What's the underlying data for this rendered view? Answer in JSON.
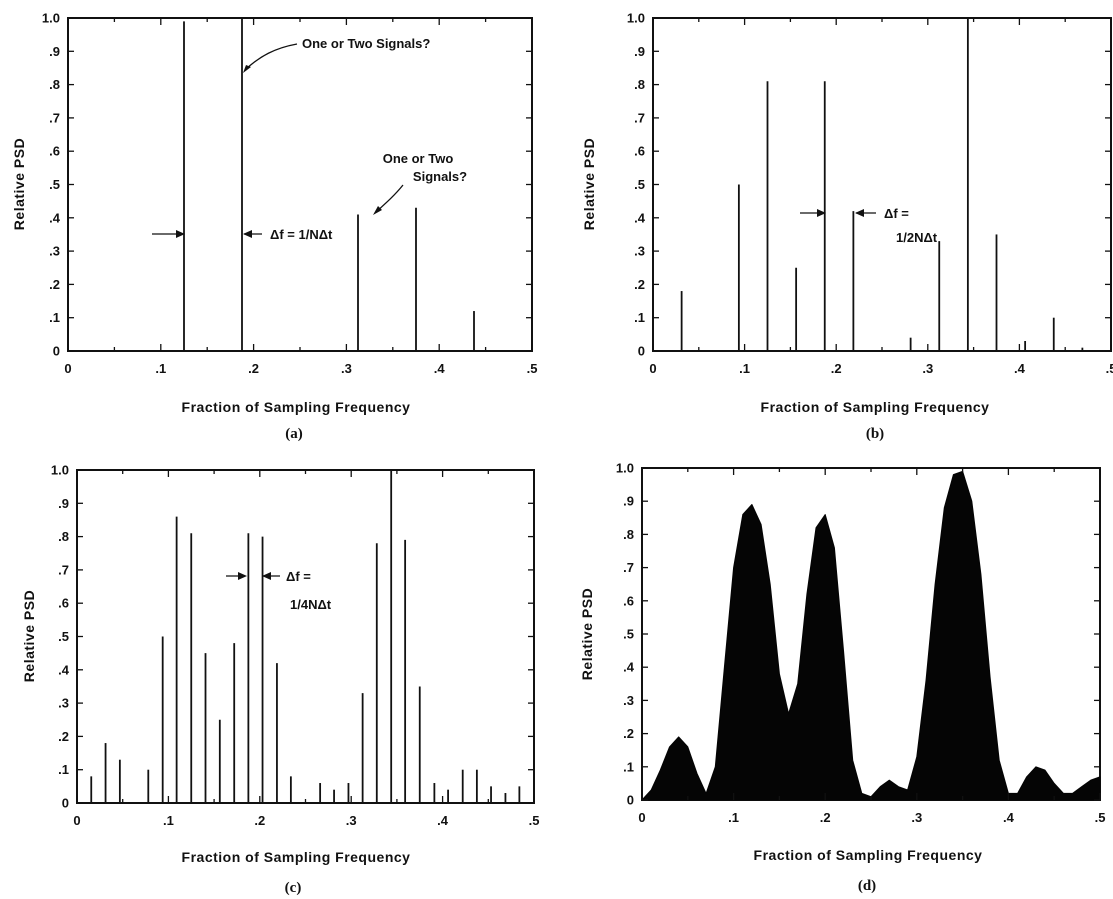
{
  "chart_data": [
    {
      "type": "bar",
      "style": "stem",
      "caption": "(a)",
      "xlabel": "Fraction of Sampling Frequency",
      "ylabel": "Relative PSD",
      "xlim": [
        0,
        0.5
      ],
      "ylim": [
        0,
        1.0
      ],
      "xticks": [
        "0",
        ".1",
        ".2",
        ".3",
        ".4",
        ".5"
      ],
      "yticks": [
        "0",
        ".1",
        ".2",
        ".3",
        ".4",
        ".5",
        ".6",
        ".7",
        ".8",
        ".9",
        "1.0"
      ],
      "x": [
        0.125,
        0.1875,
        0.3125,
        0.375,
        0.4375
      ],
      "values": [
        0.99,
        1.0,
        0.41,
        0.43,
        0.12
      ],
      "annotations": [
        {
          "text": "One or Two Signals?",
          "x": 0.19,
          "y": 0.9
        },
        {
          "text": "One or Two",
          "x": 0.36,
          "y": 0.61
        },
        {
          "text": "Signals?",
          "x": 0.36,
          "y": 0.53
        },
        {
          "text": "Δf = 1/NΔt",
          "x": 0.19,
          "y": 0.35
        }
      ]
    },
    {
      "type": "bar",
      "style": "stem",
      "caption": "(b)",
      "xlabel": "Fraction of Sampling Frequency",
      "ylabel": "Relative PSD",
      "xlim": [
        0,
        0.5
      ],
      "ylim": [
        0,
        1.0
      ],
      "xticks": [
        "0",
        ".1",
        ".2",
        ".3",
        ".4",
        ".5"
      ],
      "yticks": [
        "0",
        ".1",
        ".2",
        ".3",
        ".4",
        ".5",
        ".6",
        ".7",
        ".8",
        ".9",
        "1.0"
      ],
      "x": [
        0.03125,
        0.09375,
        0.125,
        0.15625,
        0.1875,
        0.21875,
        0.28125,
        0.3125,
        0.34375,
        0.375,
        0.40625,
        0.4375,
        0.46875
      ],
      "values": [
        0.18,
        0.5,
        0.81,
        0.25,
        0.81,
        0.42,
        0.04,
        0.33,
        1.0,
        0.35,
        0.03,
        0.1,
        0.01
      ],
      "annotations": [
        {
          "text": "Δf =",
          "x": 0.25,
          "y": 0.42
        },
        {
          "text": "1/2NΔt",
          "x": 0.25,
          "y": 0.34
        }
      ]
    },
    {
      "type": "bar",
      "style": "stem",
      "caption": "(c)",
      "xlabel": "Fraction of Sampling Frequency",
      "ylabel": "Relative PSD",
      "xlim": [
        0,
        0.5
      ],
      "ylim": [
        0,
        1.0
      ],
      "xticks": [
        "0",
        ".1",
        ".2",
        ".3",
        ".4",
        ".5"
      ],
      "yticks": [
        "0",
        ".1",
        ".2",
        ".3",
        ".4",
        ".5",
        ".6",
        ".7",
        ".8",
        ".9",
        "1.0"
      ],
      "x": [
        0.0156,
        0.03125,
        0.0469,
        0.078,
        0.09375,
        0.109,
        0.125,
        0.1406,
        0.15625,
        0.172,
        0.1875,
        0.203,
        0.21875,
        0.234,
        0.266,
        0.28125,
        0.297,
        0.3125,
        0.328,
        0.34375,
        0.359,
        0.375,
        0.391,
        0.406,
        0.422,
        0.4375,
        0.453,
        0.46875,
        0.484
      ],
      "values": [
        0.08,
        0.18,
        0.13,
        0.1,
        0.5,
        0.86,
        0.81,
        0.45,
        0.25,
        0.48,
        0.81,
        0.8,
        0.42,
        0.08,
        0.06,
        0.04,
        0.06,
        0.33,
        0.78,
        1.0,
        0.79,
        0.35,
        0.06,
        0.04,
        0.1,
        0.1,
        0.05,
        0.03,
        0.05
      ],
      "annotations": [
        {
          "text": "Δf =",
          "x": 0.22,
          "y": 0.75
        },
        {
          "text": "1/4NΔt",
          "x": 0.22,
          "y": 0.67
        }
      ]
    },
    {
      "type": "area",
      "caption": "(d)",
      "xlabel": "Fraction of Sampling Frequency",
      "ylabel": "Relative PSD",
      "xlim": [
        0,
        0.5
      ],
      "ylim": [
        0,
        1.0
      ],
      "xticks": [
        "0",
        ".1",
        ".2",
        ".3",
        ".4",
        ".5"
      ],
      "yticks": [
        "0",
        ".1",
        ".2",
        ".3",
        ".4",
        ".5",
        ".6",
        ".7",
        ".8",
        ".9",
        "1.0"
      ],
      "x": [
        0,
        0.01,
        0.02,
        0.03,
        0.04,
        0.05,
        0.06,
        0.07,
        0.08,
        0.09,
        0.1,
        0.11,
        0.12,
        0.13,
        0.14,
        0.15,
        0.16,
        0.17,
        0.18,
        0.19,
        0.2,
        0.21,
        0.22,
        0.23,
        0.24,
        0.25,
        0.26,
        0.27,
        0.28,
        0.29,
        0.3,
        0.31,
        0.32,
        0.33,
        0.34,
        0.35,
        0.36,
        0.37,
        0.38,
        0.39,
        0.4,
        0.41,
        0.42,
        0.43,
        0.44,
        0.45,
        0.46,
        0.47,
        0.48,
        0.49,
        0.5
      ],
      "values": [
        0.0,
        0.03,
        0.09,
        0.16,
        0.19,
        0.16,
        0.08,
        0.02,
        0.1,
        0.4,
        0.7,
        0.86,
        0.89,
        0.83,
        0.65,
        0.38,
        0.26,
        0.35,
        0.62,
        0.82,
        0.86,
        0.76,
        0.45,
        0.12,
        0.02,
        0.01,
        0.04,
        0.06,
        0.04,
        0.03,
        0.13,
        0.36,
        0.65,
        0.88,
        0.98,
        0.99,
        0.9,
        0.68,
        0.37,
        0.12,
        0.02,
        0.02,
        0.07,
        0.1,
        0.09,
        0.05,
        0.02,
        0.02,
        0.04,
        0.06,
        0.07
      ],
      "annotations": []
    }
  ]
}
